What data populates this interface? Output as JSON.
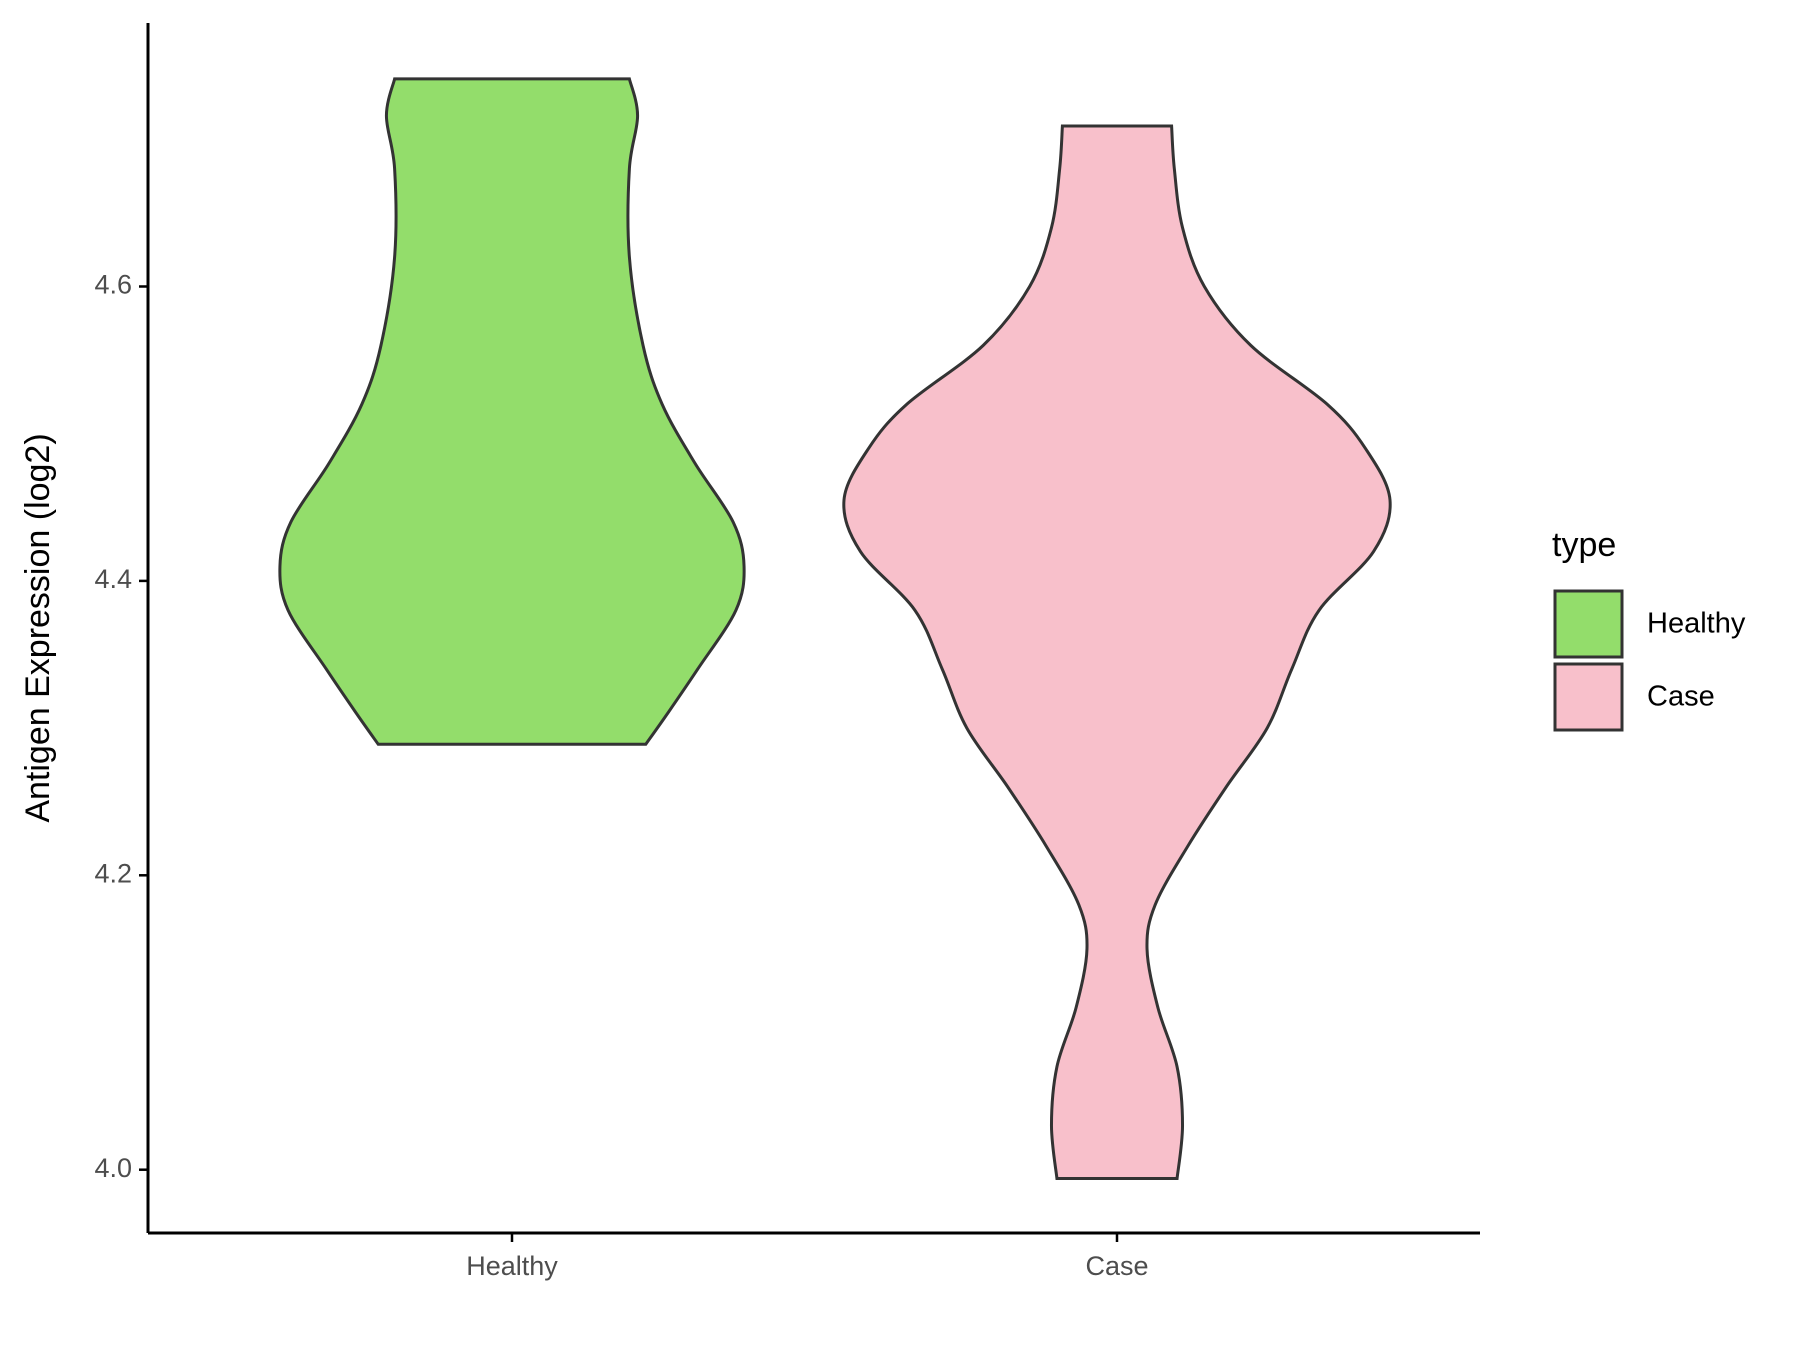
{
  "chart_data": {
    "type": "violin",
    "y_label": "Antigen Expression (log2)",
    "categories": [
      "Healthy",
      "Case"
    ],
    "series": [
      {
        "name": "Healthy",
        "color": "#93dd6b",
        "y": [
          4.741,
          4.716,
          4.68,
          4.62,
          4.56,
          4.52,
          4.48,
          4.44,
          4.41,
          4.38,
          4.34,
          4.31,
          4.289
        ],
        "width": [
          0.43,
          0.46,
          0.43,
          0.43,
          0.48,
          0.55,
          0.67,
          0.81,
          0.85,
          0.82,
          0.68,
          0.57,
          0.49
        ]
      },
      {
        "name": "Case",
        "color": "#f8c0cb",
        "y": [
          4.709,
          4.68,
          4.64,
          4.6,
          4.56,
          4.52,
          4.49,
          4.455,
          4.42,
          4.38,
          4.34,
          4.3,
          4.26,
          4.22,
          4.18,
          4.15,
          4.11,
          4.07,
          4.03,
          3.994
        ],
        "width": [
          0.2,
          0.21,
          0.24,
          0.32,
          0.49,
          0.77,
          0.91,
          1.0,
          0.94,
          0.74,
          0.64,
          0.55,
          0.4,
          0.26,
          0.14,
          0.11,
          0.15,
          0.22,
          0.24,
          0.22
        ]
      }
    ],
    "ylim": [
      3.957,
      4.779
    ],
    "yticks": [
      {
        "value": 4,
        "label": "4.0"
      },
      4.2,
      4.4,
      4.6
    ],
    "legend_title": "type"
  }
}
